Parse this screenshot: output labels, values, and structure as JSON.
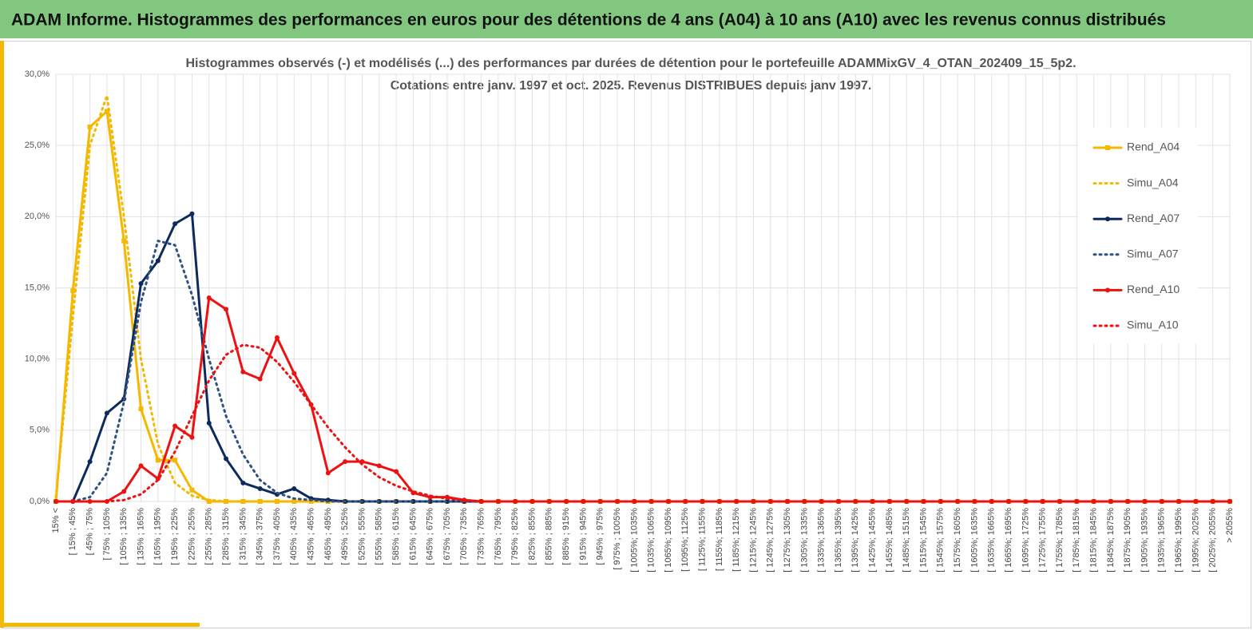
{
  "header": "ADAM Informe. Histogrammes des performances en euros pour des détentions de 4 ans (A04) à 10 ans (A10) avec les revenus connus distribués",
  "chart_data": {
    "type": "line",
    "title": "Histogrammes observés (-) et modélisés (...) des performances par durées de détention pour le portefeuille ADAMMixGV_4_OTAN_202409_15_5p2.",
    "subtitle": "Cotations entre janv. 1997 et oct. 2025. Revenus DISTRIBUES depuis janv 1997.",
    "categories": [
      "15% <",
      "[ 15% ; 45%",
      "[ 45% ; 75%",
      "[ 75% ; 105%",
      "[ 105% ; 135%",
      "[ 135% ; 165%",
      "[ 165% ; 195%",
      "[ 195% ; 225%",
      "[ 225% ; 255%",
      "[ 255% ; 285%",
      "[ 285% ; 315%",
      "[ 315% ; 345%",
      "[ 345% ; 375%",
      "[ 375% ; 405%",
      "[ 405% ; 435%",
      "[ 435% ; 465%",
      "[ 465% ; 495%",
      "[ 495% ; 525%",
      "[ 525% ; 555%",
      "[ 555% ; 585%",
      "[ 585% ; 615%",
      "[ 615% ; 645%",
      "[ 645% ; 675%",
      "[ 675% ; 705%",
      "[ 705% ; 735%",
      "[ 735% ; 765%",
      "[ 765% ; 795%",
      "[ 795% ; 825%",
      "[ 825% ; 855%",
      "[ 855% ; 885%",
      "[ 885% ; 915%",
      "[ 915% ; 945%",
      "[ 945% ; 975%",
      "[ 975% ; 1005%",
      "[ 1005%; 1035%",
      "[ 1035%; 1065%",
      "[ 1065%; 1095%",
      "[ 1095%; 1125%",
      "[ 1125%; 1155%",
      "[ 1155%; 1185%",
      "[ 1185%; 1215%",
      "[ 1215%; 1245%",
      "[ 1245%; 1275%",
      "[ 1275%; 1305%",
      "[ 1305%; 1335%",
      "[ 1335%; 1365%",
      "[ 1365%; 1395%",
      "[ 1395%; 1425%",
      "[ 1425%; 1455%",
      "[ 1455%; 1485%",
      "[ 1485%; 1515%",
      "[ 1515%; 1545%",
      "[ 1545%; 1575%",
      "[ 1575%; 1605%",
      "[ 1605%; 1635%",
      "[ 1635%; 1665%",
      "[ 1665%; 1695%",
      "[ 1695%; 1725%",
      "[ 1725%; 1755%",
      "[ 1755%; 1785%",
      "[ 1785%; 1815%",
      "[ 1815%; 1845%",
      "[ 1845%; 1875%",
      "[ 1875%; 1905%",
      "[ 1905%; 1935%",
      "[ 1935%; 1965%",
      "[ 1965%; 1995%",
      "[ 1995%; 2025%",
      "[ 2025%; 2055%",
      "> 2055%"
    ],
    "series": [
      {
        "name": "Rend_A04",
        "color": "#f5b800",
        "style": "solid",
        "marker": "square",
        "values": [
          0,
          14.8,
          26.3,
          27.4,
          18.3,
          6.5,
          2.9,
          2.9,
          0.8,
          0,
          0,
          0,
          0,
          0,
          0,
          0,
          0,
          0,
          0,
          0,
          0,
          0,
          0,
          0,
          0,
          0,
          0,
          0,
          0,
          0,
          0,
          0,
          0,
          0,
          0,
          0,
          0,
          0,
          0,
          0,
          0,
          0,
          0,
          0,
          0,
          0,
          0,
          0,
          0,
          0,
          0,
          0,
          0,
          0,
          0,
          0,
          0,
          0,
          0,
          0,
          0,
          0,
          0,
          0,
          0,
          0,
          0,
          0,
          0,
          0
        ]
      },
      {
        "name": "Simu_A04",
        "color": "#f5b800",
        "style": "dotted",
        "values": [
          0.3,
          13,
          25,
          28.5,
          20,
          10,
          4,
          1.3,
          0.4,
          0.1,
          0,
          0,
          0,
          0,
          0,
          0,
          0,
          0,
          0,
          0,
          0,
          0,
          0,
          0,
          0,
          0,
          0,
          0,
          0,
          0,
          0,
          0,
          0,
          0,
          0,
          0,
          0,
          0,
          0,
          0,
          0,
          0,
          0,
          0,
          0,
          0,
          0,
          0,
          0,
          0,
          0,
          0,
          0,
          0,
          0,
          0,
          0,
          0,
          0,
          0,
          0,
          0,
          0,
          0,
          0,
          0,
          0,
          0,
          0,
          0
        ]
      },
      {
        "name": "Rend_A07",
        "color": "#0d2a5c",
        "style": "solid",
        "marker": "circle",
        "values": [
          0,
          0,
          2.8,
          6.2,
          7.2,
          15.3,
          16.9,
          19.5,
          20.2,
          5.5,
          3,
          1.3,
          0.9,
          0.5,
          0.9,
          0.2,
          0.1,
          0,
          0,
          0,
          0,
          0,
          0,
          0,
          0,
          0,
          0,
          0,
          0,
          0,
          0,
          0,
          0,
          0,
          0,
          0,
          0,
          0,
          0,
          0,
          0,
          0,
          0,
          0,
          0,
          0,
          0,
          0,
          0,
          0,
          0,
          0,
          0,
          0,
          0,
          0,
          0,
          0,
          0,
          0,
          0,
          0,
          0,
          0,
          0,
          0,
          0,
          0,
          0,
          0
        ]
      },
      {
        "name": "Simu_A07",
        "color": "#2f5280",
        "style": "dotted",
        "values": [
          0,
          0,
          0.3,
          2,
          7,
          14,
          18.3,
          18,
          14.5,
          10,
          6,
          3.3,
          1.5,
          0.6,
          0.2,
          0.1,
          0,
          0,
          0,
          0,
          0,
          0,
          0,
          0,
          0,
          0,
          0,
          0,
          0,
          0,
          0,
          0,
          0,
          0,
          0,
          0,
          0,
          0,
          0,
          0,
          0,
          0,
          0,
          0,
          0,
          0,
          0,
          0,
          0,
          0,
          0,
          0,
          0,
          0,
          0,
          0,
          0,
          0,
          0,
          0,
          0,
          0,
          0,
          0,
          0,
          0,
          0,
          0,
          0,
          0
        ]
      },
      {
        "name": "Rend_A10",
        "color": "#ee1111",
        "style": "solid",
        "marker": "circle",
        "values": [
          0,
          0,
          0,
          0,
          0.7,
          2.5,
          1.6,
          5.3,
          4.5,
          14.3,
          13.5,
          9.1,
          8.6,
          11.5,
          9,
          6.8,
          2,
          2.8,
          2.8,
          2.5,
          2.1,
          0.6,
          0.3,
          0.3,
          0.1,
          0,
          0,
          0,
          0,
          0,
          0,
          0,
          0,
          0,
          0,
          0,
          0,
          0,
          0,
          0,
          0,
          0,
          0,
          0,
          0,
          0,
          0,
          0,
          0,
          0,
          0,
          0,
          0,
          0,
          0,
          0,
          0,
          0,
          0,
          0,
          0,
          0,
          0,
          0,
          0,
          0,
          0,
          0,
          0,
          0
        ]
      },
      {
        "name": "Simu_A10",
        "color": "#ee1111",
        "style": "dotted",
        "values": [
          0,
          0,
          0,
          0,
          0.1,
          0.5,
          1.5,
          3.5,
          6,
          8.5,
          10.3,
          11,
          10.8,
          9.8,
          8.4,
          6.8,
          5.2,
          3.8,
          2.6,
          1.7,
          1.1,
          0.7,
          0.4,
          0.2,
          0.1,
          0,
          0,
          0,
          0,
          0,
          0,
          0,
          0,
          0,
          0,
          0,
          0,
          0,
          0,
          0,
          0,
          0,
          0,
          0,
          0,
          0,
          0,
          0,
          0,
          0,
          0,
          0,
          0,
          0,
          0,
          0,
          0,
          0,
          0,
          0,
          0,
          0,
          0,
          0,
          0,
          0,
          0,
          0,
          0,
          0
        ]
      }
    ],
    "ylim": [
      0,
      30
    ],
    "yticks": [
      {
        "value": 0,
        "label": "0,0%"
      },
      {
        "value": 5,
        "label": "5,0%"
      },
      {
        "value": 10,
        "label": "10,0%"
      },
      {
        "value": 15,
        "label": "15,0%"
      },
      {
        "value": 20,
        "label": "20,0%"
      },
      {
        "value": 25,
        "label": "25,0%"
      },
      {
        "value": 30,
        "label": "30,0%"
      }
    ],
    "grid": true,
    "legend": "right"
  }
}
